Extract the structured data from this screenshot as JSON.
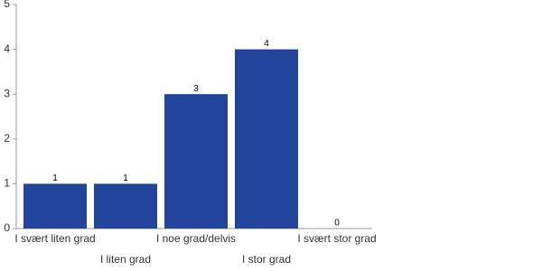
{
  "chart_data": {
    "type": "bar",
    "categories": [
      "I svært liten grad",
      "I liten grad",
      "I noe grad/delvis",
      "I stor grad",
      "I svært stor grad"
    ],
    "values": [
      1,
      1,
      3,
      4,
      0
    ],
    "color": "#22449a",
    "ylim": [
      0,
      5
    ],
    "yticks": [
      0,
      1,
      2,
      3,
      4,
      5
    ]
  }
}
